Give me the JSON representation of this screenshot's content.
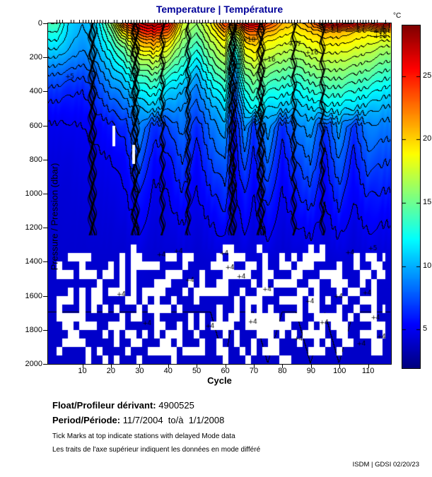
{
  "figure": {
    "title": "Temperature | Température",
    "title_color": "#000099",
    "float_label": "Float/Profileur dérivant:",
    "float_value": "4900525",
    "period_label": "Period/Période:",
    "period_value": "11/7/2004  to/à  1/1/2008",
    "note_en": "Tick Marks at top indicate stations with delayed Mode data",
    "note_fr": "Les traits de l'axe supérieur indiquent les données en mode différé",
    "footer": "ISDM | GDSI  02/20/23"
  },
  "chart_data": {
    "type": "heatmap",
    "title": "Temperature | Température",
    "xlabel": "Cycle",
    "ylabel": "Pressure / Pression (dbar)",
    "x_ticks": [
      10,
      20,
      30,
      40,
      50,
      60,
      70,
      80,
      90,
      100,
      110
    ],
    "y_ticks": [
      0,
      200,
      400,
      600,
      800,
      1000,
      1200,
      1400,
      1600,
      1800,
      2000
    ],
    "xlim": [
      -2,
      118
    ],
    "cycle_range": [
      1,
      116
    ],
    "ylim": [
      0,
      2000
    ],
    "y_inverted": true,
    "grid": false,
    "colorbar": {
      "label": "°C",
      "ticks": [
        5,
        10,
        15,
        20,
        25
      ],
      "vmin": 2,
      "vmax": 29,
      "colormap": "jet",
      "position": "right"
    },
    "contour_interval": 1,
    "pressures": [
      0,
      50,
      100,
      150,
      200,
      300,
      400,
      500,
      600,
      800,
      1000,
      1200,
      1400,
      1700,
      2000
    ],
    "cycles": [
      1,
      5,
      10,
      15,
      20,
      25,
      30,
      35,
      40,
      45,
      50,
      55,
      60,
      63,
      67,
      70,
      75,
      80,
      85,
      90,
      95,
      100,
      105,
      110,
      116
    ],
    "values": [
      [
        14,
        11,
        10,
        11,
        16,
        24,
        27,
        28,
        26,
        18,
        16,
        19,
        24,
        23,
        26,
        27,
        24,
        21,
        20,
        22,
        26,
        27,
        26,
        25,
        26
      ],
      [
        13,
        10.8,
        9.8,
        10.8,
        14.5,
        20,
        24,
        25,
        23,
        17,
        15,
        18,
        21,
        17,
        22,
        23,
        21,
        19.5,
        19,
        20,
        21,
        21,
        20,
        19.5,
        20
      ],
      [
        12,
        10.4,
        9.4,
        10.4,
        13.5,
        17,
        21,
        22,
        20,
        16,
        14,
        17,
        19,
        14,
        20,
        21,
        19,
        18.5,
        18,
        19,
        19.5,
        19.5,
        19,
        18.5,
        18
      ],
      [
        11,
        10,
        9,
        10,
        12.5,
        15,
        19,
        20,
        18,
        15,
        13,
        16,
        18,
        12,
        18.5,
        19.5,
        18,
        17.5,
        17,
        18,
        18.5,
        18.5,
        18,
        17.5,
        16.5
      ],
      [
        10,
        9.2,
        8.6,
        9.5,
        11.5,
        14,
        17,
        18,
        16.5,
        14,
        12,
        15,
        17,
        10.5,
        17.5,
        18.5,
        17,
        16.5,
        16,
        17,
        17.5,
        17.5,
        17,
        16.5,
        15.5
      ],
      [
        8,
        7.6,
        7.2,
        8,
        10,
        11.5,
        14,
        15,
        13.5,
        12,
        10,
        13,
        15,
        8.5,
        15,
        16,
        15,
        14.5,
        14,
        15,
        15.5,
        15.5,
        15,
        14.5,
        13.5
      ],
      [
        6.6,
        6.2,
        6,
        7,
        8.5,
        9.5,
        12,
        12.5,
        11,
        10,
        8.5,
        11,
        13,
        7,
        13,
        14,
        13,
        12.5,
        12,
        13,
        13.5,
        13.5,
        13,
        12.5,
        11.5
      ],
      [
        5.6,
        5.5,
        5.5,
        6.2,
        7.2,
        8,
        10,
        10.5,
        9.2,
        9,
        7.5,
        9.5,
        11,
        6,
        11,
        12,
        11,
        10.5,
        10.2,
        11,
        11.5,
        11.5,
        11,
        10.5,
        9.8
      ],
      [
        4.9,
        4.9,
        5,
        5.3,
        5.8,
        6.5,
        9,
        6.5,
        7,
        8.5,
        6.2,
        8.5,
        9.6,
        5.2,
        9.2,
        6.5,
        9.6,
        6.3,
        8.6,
        9.6,
        6.6,
        9.6,
        6.6,
        9,
        8.6
      ],
      [
        4.5,
        4.5,
        4.7,
        4.8,
        5,
        5.4,
        7.6,
        5.4,
        5.7,
        7.1,
        5.4,
        7.1,
        8.1,
        4.9,
        7.6,
        5.6,
        8.1,
        5.4,
        7.1,
        8.1,
        5.6,
        8.1,
        5.6,
        7.6,
        7.1
      ],
      [
        4.3,
        4.3,
        4.4,
        4.5,
        4.6,
        4.9,
        6.1,
        4.8,
        5,
        5.9,
        4.9,
        5.9,
        6.6,
        4.6,
        6.1,
        5,
        6.6,
        4.9,
        5.9,
        6.6,
        5.1,
        6.6,
        5.1,
        6.1,
        5.9
      ],
      [
        4.2,
        4.2,
        4.2,
        4.3,
        4.3,
        4.4,
        5.1,
        4.4,
        4.5,
        4.9,
        4.4,
        4.9,
        5.3,
        4.3,
        5.1,
        4.5,
        5.3,
        4.4,
        4.9,
        5.3,
        4.5,
        5.3,
        4.5,
        5.1,
        4.9
      ],
      [
        4.1,
        4.1,
        4.1,
        4.1,
        4.1,
        4.1,
        4.3,
        4.1,
        4.2,
        4.2,
        4.1,
        4.2,
        4.3,
        4.1,
        4.3,
        4.2,
        4.3,
        4.1,
        4.2,
        4.3,
        4.2,
        4.3,
        4.2,
        4.3,
        4.2
      ],
      [
        4,
        4,
        4,
        4,
        4,
        4,
        4,
        4,
        4,
        4,
        4,
        4,
        4.1,
        4,
        4,
        4,
        4.1,
        4,
        4,
        4.1,
        4,
        4.1,
        4,
        4,
        4
      ],
      [
        3.9,
        3.9,
        3.9,
        3.9,
        3.9,
        3.9,
        3.9,
        3.9,
        3.9,
        3.9,
        3.9,
        3.9,
        4,
        3.9,
        3.9,
        3.9,
        4,
        3.9,
        3.9,
        4,
        3.9,
        4,
        3.9,
        3.9,
        3.9
      ]
    ],
    "dense_contour_cycles": [
      13,
      14,
      28,
      29,
      38,
      47,
      62,
      63,
      72,
      73,
      84,
      94
    ],
    "missing_data": {
      "below_dbar": 1300,
      "block_cycles": 2,
      "block_dbar": 50,
      "fraction": 0.45,
      "fraction_top_band": 0.12,
      "fraction_bottom_band": 0.2,
      "segments": [
        {
          "cycle": 21,
          "from_dbar": 600,
          "to_dbar": 720
        },
        {
          "cycle": 28,
          "from_dbar": 715,
          "to_dbar": 825
        }
      ]
    },
    "delayed_tick_fraction": 0.85,
    "contour_labels": [
      {
        "cycle": 6,
        "dbar": 310,
        "text": "5"
      },
      {
        "cycle": 63,
        "dbar": 60,
        "text": "20"
      },
      {
        "cycle": 68,
        "dbar": 95,
        "text": "18"
      },
      {
        "cycle": 75,
        "dbar": 210,
        "text": "16"
      },
      {
        "cycle": 84,
        "dbar": 120,
        "text": "17"
      },
      {
        "cycle": 90,
        "dbar": 170,
        "text": "16"
      },
      {
        "cycle": 114,
        "dbar": 45,
        "text": "19"
      },
      {
        "cycle": 114,
        "dbar": 75,
        "text": "18"
      },
      {
        "cycle": 28,
        "dbar": 850,
        "text": "8"
      },
      {
        "cycle": 112,
        "dbar": 1320,
        "text": "5"
      },
      {
        "cycle": 24,
        "dbar": 1590,
        "text": "4"
      },
      {
        "cycle": 33,
        "dbar": 1760,
        "text": "4"
      },
      {
        "cycle": 38,
        "dbar": 1355,
        "text": "4"
      },
      {
        "cycle": 44,
        "dbar": 1335,
        "text": "4"
      },
      {
        "cycle": 48,
        "dbar": 1505,
        "text": "4"
      },
      {
        "cycle": 55,
        "dbar": 1775,
        "text": "4"
      },
      {
        "cycle": 60,
        "dbar": 1350,
        "text": "4"
      },
      {
        "cycle": 62,
        "dbar": 1430,
        "text": "4"
      },
      {
        "cycle": 66,
        "dbar": 1485,
        "text": "4"
      },
      {
        "cycle": 70,
        "dbar": 1750,
        "text": "4"
      },
      {
        "cycle": 75,
        "dbar": 1560,
        "text": "4"
      },
      {
        "cycle": 86,
        "dbar": 1850,
        "text": "4"
      },
      {
        "cycle": 90,
        "dbar": 1630,
        "text": "4"
      },
      {
        "cycle": 95,
        "dbar": 1755,
        "text": "4"
      },
      {
        "cycle": 100,
        "dbar": 1600,
        "text": "4"
      },
      {
        "cycle": 104,
        "dbar": 1345,
        "text": "4"
      },
      {
        "cycle": 108,
        "dbar": 1880,
        "text": "4"
      },
      {
        "cycle": 110,
        "dbar": 1580,
        "text": "4"
      },
      {
        "cycle": 113,
        "dbar": 1725,
        "text": "4"
      },
      {
        "cycle": 115,
        "dbar": 1840,
        "text": "4"
      }
    ]
  }
}
